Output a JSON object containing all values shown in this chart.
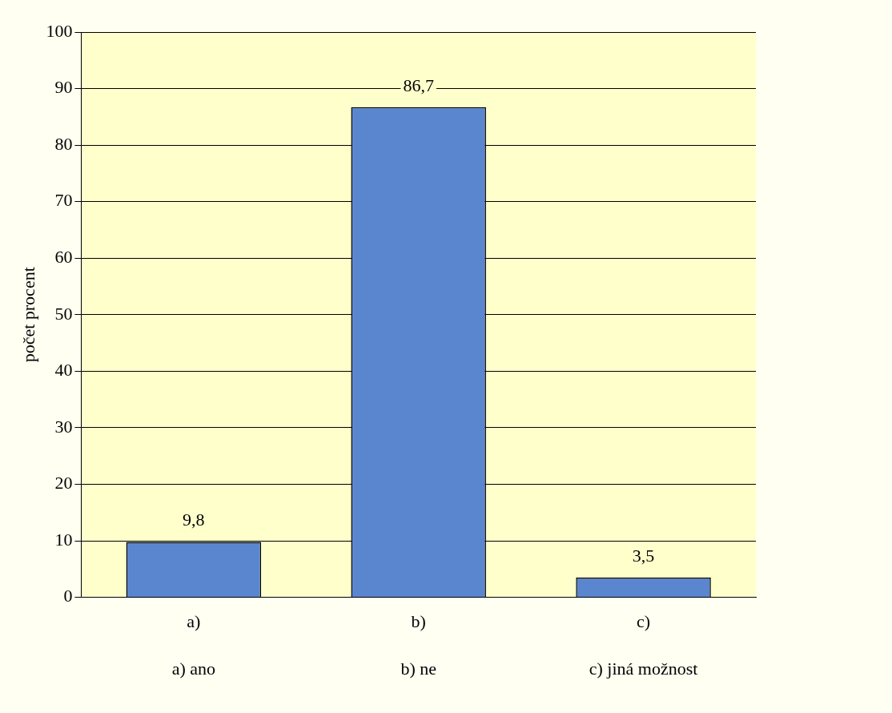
{
  "chart_data": {
    "type": "bar",
    "ylabel": "počet procent",
    "categories": [
      "a)",
      "b)",
      "c)"
    ],
    "values": [
      9.8,
      86.7,
      3.5
    ],
    "value_labels": [
      "9,8",
      "86,7",
      "3,5"
    ],
    "color": "#5a86d0",
    "ylim": [
      0,
      100
    ],
    "yticks": [
      0,
      10,
      20,
      30,
      40,
      50,
      60,
      70,
      80,
      90,
      100
    ],
    "grid": "y",
    "legend": false,
    "annotations": [
      "a) ano",
      "b) ne",
      "c) jiná možnost"
    ]
  }
}
